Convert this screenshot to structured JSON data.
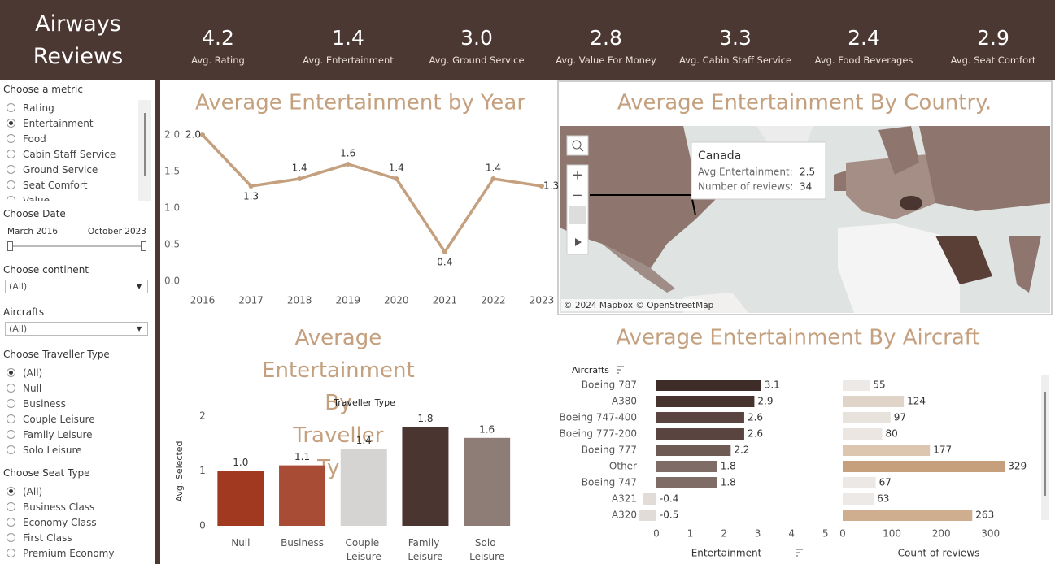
{
  "header": {
    "title": "Airways Reviews",
    "kpis": [
      {
        "value": "4.2",
        "label": "Avg. Rating"
      },
      {
        "value": "1.4",
        "label": "Avg. Entertainment"
      },
      {
        "value": "3.0",
        "label": "Avg. Ground Service"
      },
      {
        "value": "2.8",
        "label": "Avg. Value For Money"
      },
      {
        "value": "3.3",
        "label": "Avg. Cabin Staff Service"
      },
      {
        "value": "2.4",
        "label": "Avg. Food Beverages"
      },
      {
        "value": "2.9",
        "label": "Avg. Seat Comfort"
      }
    ]
  },
  "sidebar": {
    "filters": [
      {
        "title": "Choose a metric",
        "type": "radio",
        "options": [
          "Rating",
          "Entertainment",
          "Food",
          "Cabin Staff Service",
          "Ground Service",
          "Seat Comfort",
          "Value"
        ],
        "selected": 1
      },
      {
        "title": "Choose Date",
        "type": "range",
        "start": "March 2016",
        "end": "October 2023"
      },
      {
        "title": "Choose continent",
        "type": "dropdown",
        "value": "(All)"
      },
      {
        "title": "Aircrafts",
        "type": "dropdown",
        "value": "(All)"
      },
      {
        "title": "Choose Traveller Type",
        "type": "radio",
        "options": [
          "(All)",
          "Null",
          "Business",
          "Couple Leisure",
          "Family Leisure",
          "Solo Leisure"
        ],
        "selected": 0
      },
      {
        "title": "Choose Seat Type",
        "type": "radio",
        "options": [
          "(All)",
          "Business Class",
          "Economy Class",
          "First Class",
          "Premium Economy"
        ],
        "selected": 0
      }
    ]
  },
  "chart_data": [
    {
      "type": "line",
      "title": "Average Entertainment by Year",
      "color": "#c4a07e",
      "categories": [
        "2016",
        "2017",
        "2018",
        "2019",
        "2020",
        "2021",
        "2022",
        "2023"
      ],
      "values": [
        2.0,
        1.3,
        1.4,
        1.6,
        1.4,
        0.4,
        1.4,
        1.3
      ],
      "value_labels": [
        "2.0",
        "1.3",
        "1.4",
        "1.6",
        "1.4",
        "0.4",
        "1.4",
        "1.3"
      ],
      "ylim": [
        0,
        2.1
      ],
      "yticks": [
        {
          "value": 0,
          "label": "0.0"
        },
        0.5,
        {
          "value": 1,
          "label": "1.0"
        },
        1.5,
        {
          "value": 2,
          "label": "2.0"
        }
      ]
    },
    {
      "type": "map",
      "title": "Average Entertainment By Country.",
      "attribution": "© 2024 Mapbox © OpenStreetMap",
      "tooltip": {
        "country": "Canada",
        "rows": [
          {
            "label": "Avg Entertainment:",
            "value": 2.5
          },
          {
            "label": "Number of reviews:",
            "value": 34
          }
        ]
      }
    },
    {
      "type": "bar",
      "title": "Average Entertainment By Traveller Type",
      "x_header": "Traveller Type",
      "ylabel": "Avg. Selected",
      "categories": [
        "Null",
        "Business",
        "Couple Leisure",
        "Family Leisure",
        "Solo Leisure"
      ],
      "values": [
        1.0,
        1.1,
        1.4,
        1.8,
        1.6
      ],
      "value_labels": [
        "1.0",
        "1.1",
        "1.4",
        "1.8",
        "1.6"
      ],
      "colors": [
        "#a0391f",
        "#a84c35",
        "#d6d4d2",
        "#4a3530",
        "#8e7c76"
      ],
      "ylim": [
        0,
        2.1
      ],
      "yticks": [
        0,
        1,
        2
      ]
    },
    {
      "type": "hbar",
      "title": "Average Entertainment By Aircraft",
      "category_header": "Aircrafts",
      "categories": [
        "Boeing 787",
        "A380",
        "Boeing 747-400",
        "Boeing 777-200",
        "Boeing 777",
        "Other",
        "Boeing 747",
        "A321",
        "A320"
      ],
      "series": [
        {
          "name": "Entertainment",
          "values": [
            3.1,
            2.9,
            2.6,
            2.6,
            2.2,
            1.8,
            1.8,
            -0.4,
            -0.5
          ],
          "colors": [
            "#3d2c28",
            "#47342f",
            "#5a4440",
            "#5a4440",
            "#6e5a55",
            "#7f6c67",
            "#7f6c67",
            "#e2dcd9",
            "#e2dcd9"
          ],
          "xlim": [
            -0.6,
            5.2
          ],
          "xticks": [
            0,
            1,
            2,
            3,
            4,
            5
          ]
        },
        {
          "name": "Count of reviews",
          "values": [
            55,
            124,
            97,
            80,
            177,
            329,
            67,
            63,
            263
          ],
          "colors": [
            "#ece9e7",
            "#e0d3c7",
            "#e8e2dc",
            "#ebe6e2",
            "#dcc6b0",
            "#c6a07c",
            "#ece8e5",
            "#ece9e7",
            "#cfae90"
          ],
          "xlim": [
            0,
            350
          ],
          "xticks": [
            0,
            100,
            200,
            300
          ]
        }
      ]
    }
  ]
}
